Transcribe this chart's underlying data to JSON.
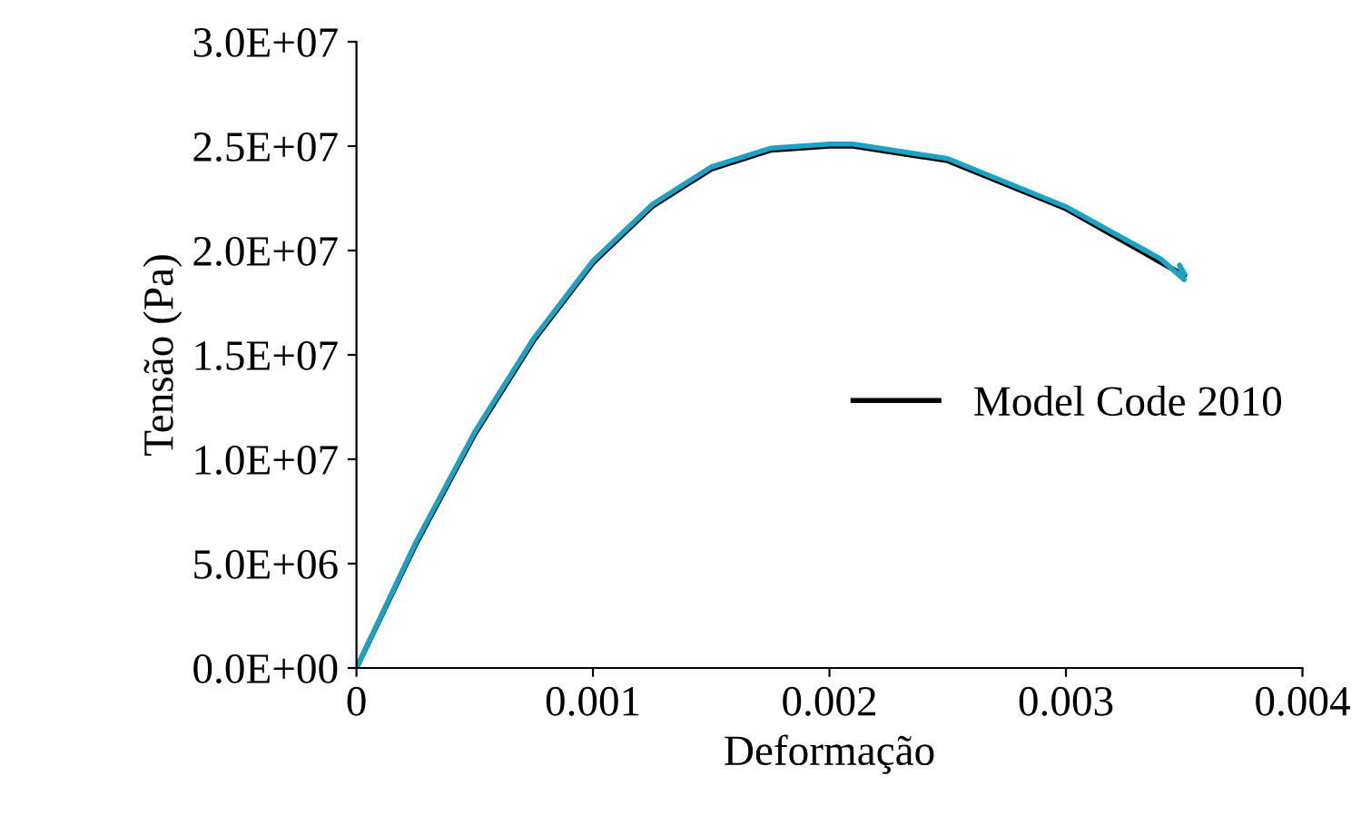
{
  "chart_data": {
    "type": "line",
    "xlabel": "Deformação",
    "ylabel": "Tensão (Pa)",
    "xlim": [
      0,
      0.004
    ],
    "xticks": [
      0,
      0.001,
      0.002,
      0.003,
      0.004
    ],
    "ylim": [
      0,
      30000000
    ],
    "yticks": [
      {
        "value": 0,
        "label": "0.0E+00"
      },
      {
        "value": 5000000,
        "label": "5.0E+06"
      },
      {
        "value": 10000000,
        "label": "1.0E+07"
      },
      {
        "value": 15000000,
        "label": "1.5E+07"
      },
      {
        "value": 20000000,
        "label": "2.0E+07"
      },
      {
        "value": 25000000,
        "label": "2.5E+07"
      },
      {
        "value": 30000000,
        "label": "3.0E+07"
      }
    ],
    "grid": false,
    "legend": "right",
    "marker": "none",
    "line_style": "solid",
    "series": [
      {
        "name": "Model Code 2010",
        "color": "#000000",
        "x": [
          0,
          0.00025,
          0.0005,
          0.00075,
          0.001,
          0.00125,
          0.0015,
          0.00175,
          0.002,
          0.0021,
          0.0025,
          0.003,
          0.0035
        ],
        "values": [
          0,
          5900000,
          11200000,
          15700000,
          19400000,
          22100000,
          23900000,
          24800000,
          25000000,
          25000000,
          24300000,
          22000000,
          18800000
        ]
      },
      {
        "color": "#1aa3c7",
        "x": [
          0,
          0.00025,
          0.0005,
          0.00075,
          0.001,
          0.00125,
          0.0015,
          0.00175,
          0.002,
          0.0021,
          0.0025,
          0.003,
          0.0034,
          0.0035,
          0.00348,
          0.0035
        ],
        "values": [
          0,
          6000000,
          11300000,
          15800000,
          19500000,
          22200000,
          24000000,
          24900000,
          25100000,
          25100000,
          24400000,
          22100000,
          19600000,
          18600000,
          19300000,
          18900000
        ]
      }
    ]
  }
}
